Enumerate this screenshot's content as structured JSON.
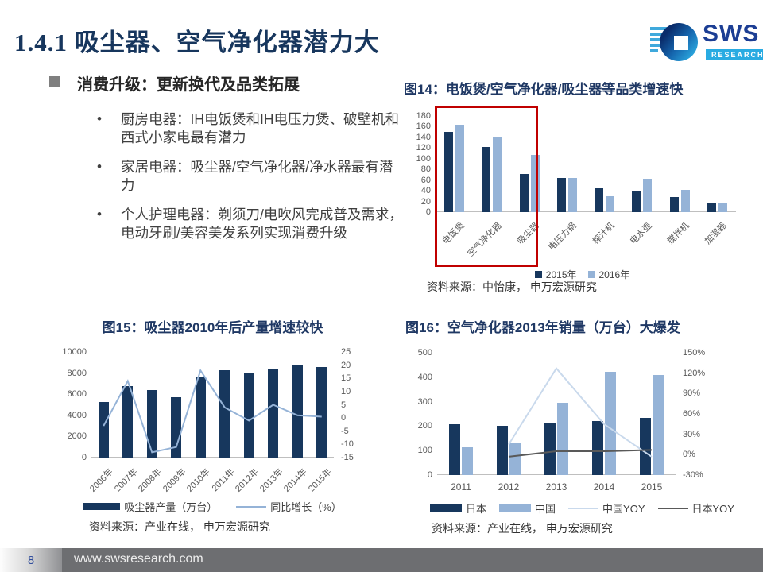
{
  "slide": {
    "title": "1.4.1 吸尘器、空气净化器潜力大",
    "footer": {
      "page_number": "8",
      "url": "www.swsresearch.com"
    }
  },
  "logo": {
    "text": "SWS",
    "subtext": "RESEARCH"
  },
  "content": {
    "heading": "消费升级：更新换代及品类拓展",
    "bullets": [
      "厨房电器：IH电饭煲和IH电压力煲、破壁机和西式小家电最有潜力",
      "家居电器：吸尘器/空气净化器/净水器最有潜力",
      "个人护理电器：剃须刀/电吹风完成普及需求，电动牙刷/美容美发系列实现消费升级"
    ]
  },
  "colors": {
    "navy": "#17375D",
    "light_blue": "#95B3D7",
    "pale_blue": "#C9D9EC",
    "dark_gray_line": "#595959",
    "highlight_red": "#C00000",
    "title_navy": "#1F3864"
  },
  "chart_data": [
    {
      "id": "fig14",
      "type": "bar",
      "title": "图14：电饭煲/空气净化器/吸尘器等品类增速快",
      "categories": [
        "电饭煲",
        "空气净化器",
        "吸尘器",
        "电压力锅",
        "榨汁机",
        "电水壶",
        "搅拌机",
        "加湿器"
      ],
      "series": [
        {
          "name": "2015年",
          "color": "#17375D",
          "values": [
            150,
            122,
            71,
            64,
            45,
            40,
            28,
            16
          ]
        },
        {
          "name": "2016年",
          "color": "#95B3D7",
          "values": [
            163,
            142,
            107,
            64,
            30,
            62,
            42,
            16
          ]
        }
      ],
      "ylim": [
        0,
        180
      ],
      "ytick_step": 20,
      "grid": false,
      "legend_position": "bottom",
      "annotation": "红色方框突出前三个品类（电饭煲/空气净化器/吸尘器）",
      "source": "资料来源：中怡康， 申万宏源研究"
    },
    {
      "id": "fig15",
      "type": "combo-bar-line",
      "title": "图15：吸尘器2010年后产量增速较快",
      "categories": [
        "2006年",
        "2007年",
        "2008年",
        "2009年",
        "2010年",
        "2011年",
        "2012年",
        "2013年",
        "2014年",
        "2015年"
      ],
      "bar_series": [
        {
          "name": "吸尘器产量（万台）",
          "color": "#17375D",
          "axis": "left",
          "values": [
            5300,
            6800,
            6400,
            5700,
            7600,
            8300,
            8000,
            8400,
            8800,
            8600
          ]
        }
      ],
      "line_series": [
        {
          "name": "同比增长（%）",
          "color": "#95B3D7",
          "axis": "right",
          "values": [
            -3,
            14,
            -13,
            -11,
            18,
            4,
            -1,
            5,
            1,
            0.5
          ]
        }
      ],
      "left_ylim": [
        0,
        10000
      ],
      "left_tick_step": 2000,
      "right_ylim": [
        -15,
        25
      ],
      "right_tick_step": 5,
      "grid": false,
      "legend_position": "bottom",
      "source": "资料来源：产业在线， 申万宏源研究"
    },
    {
      "id": "fig16",
      "type": "combo-bar-line",
      "title": "图16：空气净化器2013年销量（万台）大爆发",
      "categories": [
        "2011",
        "2012",
        "2013",
        "2014",
        "2015"
      ],
      "bar_series": [
        {
          "name": "日本",
          "color": "#17375D",
          "axis": "left",
          "values": [
            207,
            200,
            210,
            220,
            235
          ]
        },
        {
          "name": "中国",
          "color": "#95B3D7",
          "axis": "left",
          "values": [
            113,
            130,
            295,
            422,
            408
          ]
        }
      ],
      "line_series": [
        {
          "name": "中国YOY",
          "color": "#C9D9EC",
          "axis": "right",
          "values": [
            null,
            15,
            127,
            45,
            -3
          ]
        },
        {
          "name": "日本YOY",
          "color": "#595959",
          "axis": "right",
          "values": [
            null,
            -3,
            5,
            5,
            7
          ]
        }
      ],
      "left_ylim": [
        0,
        500
      ],
      "left_tick_step": 100,
      "right_ylim": [
        -30,
        150
      ],
      "right_tick_step": 30,
      "right_format": "percent",
      "grid": false,
      "legend_position": "bottom",
      "source": "资料来源：产业在线， 申万宏源研究"
    }
  ]
}
